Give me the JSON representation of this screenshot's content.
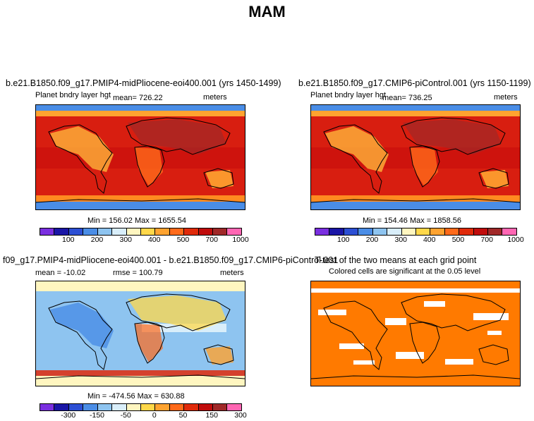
{
  "main_title": "MAM",
  "chart_data": [
    {
      "type": "heatmap",
      "title": "b.e21.B1850.f09_g17.PMIP4-midPliocene-eoi400.001 (yrs 1450-1499)",
      "left_label": "Planet bndry layer hgt",
      "center_label": "mean= 726.22",
      "right_label": "meters",
      "stats": "Min = 156.02 Max = 1655.54",
      "colorbar_levels": [
        "100",
        "200",
        "300",
        "400",
        "500",
        "700",
        "1000"
      ],
      "colorbar_colors": [
        "#7a2fe0",
        "#1a16a6",
        "#2c4fd4",
        "#4a8de6",
        "#8ec4f0",
        "#d9eefa",
        "#fff6c0",
        "#ffd84a",
        "#ffa330",
        "#ff6a1a",
        "#e02a0a",
        "#c00c0c",
        "#a02828",
        "#ff66b3"
      ]
    },
    {
      "type": "heatmap",
      "title": "b.e21.B1850.f09_g17.CMIP6-piControl.001 (yrs 1150-1199)",
      "left_label": "Planet bndry layer hgt",
      "center_label": "mean= 736.25",
      "right_label": "meters",
      "stats": "Min = 154.46 Max = 1858.56",
      "colorbar_levels": [
        "100",
        "200",
        "300",
        "400",
        "500",
        "700",
        "1000"
      ],
      "colorbar_colors": [
        "#7a2fe0",
        "#1a16a6",
        "#2c4fd4",
        "#4a8de6",
        "#8ec4f0",
        "#d9eefa",
        "#fff6c0",
        "#ffd84a",
        "#ffa330",
        "#ff6a1a",
        "#e02a0a",
        "#c00c0c",
        "#a02828",
        "#ff66b3"
      ]
    },
    {
      "type": "heatmap",
      "title": "f09_g17.PMIP4-midPliocene-eoi400.001 - b.e21.B1850.f09_g17.CMIP6-piControl.001",
      "left_label": "mean = -10.02",
      "center_label": "rmse = 100.79",
      "right_label": "meters",
      "stats": "Min = -474.56 Max = 630.88",
      "colorbar_levels": [
        "-300",
        "-150",
        "-50",
        "0",
        "50",
        "150",
        "300"
      ],
      "colorbar_colors": [
        "#7a2fe0",
        "#1a16a6",
        "#2c4fd4",
        "#4a8de6",
        "#8ec4f0",
        "#d9eefa",
        "#fff6c0",
        "#ffd84a",
        "#ffa330",
        "#ff6a1a",
        "#e02a0a",
        "#c00c0c",
        "#a02828",
        "#ff66b3"
      ]
    },
    {
      "type": "heatmap",
      "title": "T-test of the two means at each grid point",
      "left_label": "Colored cells are significant at the 0.05 level",
      "significant_color": "#ff7a00"
    }
  ]
}
